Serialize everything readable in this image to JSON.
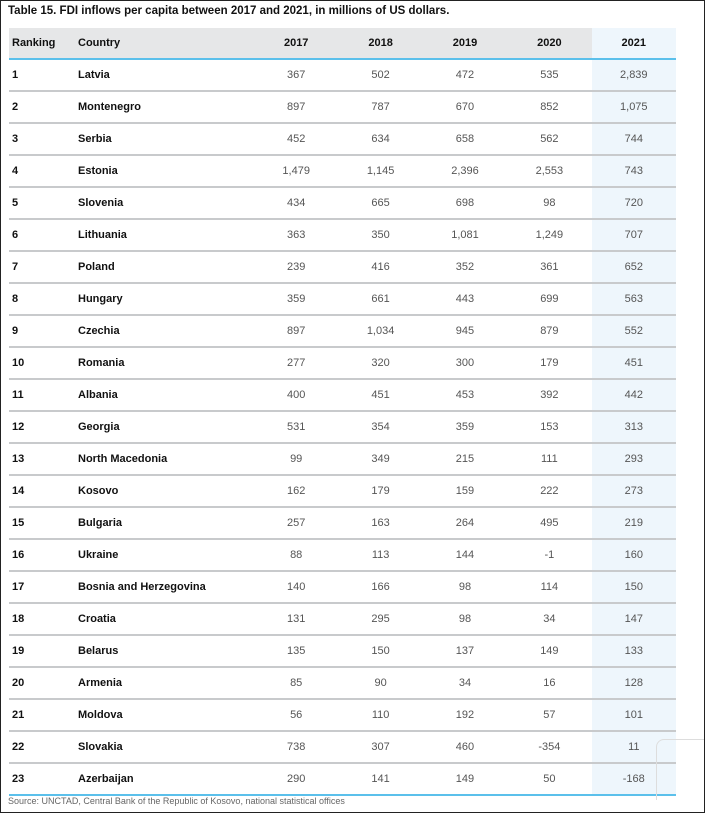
{
  "title": "Table 15. FDI inflows per capita between 2017 and 2021, in millions of US dollars.",
  "headers": [
    "Ranking",
    "Country",
    "2017",
    "2018",
    "2019",
    "2020",
    "2021"
  ],
  "rows": [
    [
      "1",
      "Latvia",
      "367",
      "502",
      "472",
      "535",
      "2,839"
    ],
    [
      "2",
      "Montenegro",
      "897",
      "787",
      "670",
      "852",
      "1,075"
    ],
    [
      "3",
      "Serbia",
      "452",
      "634",
      "658",
      "562",
      "744"
    ],
    [
      "4",
      "Estonia",
      "1,479",
      "1,145",
      "2,396",
      "2,553",
      "743"
    ],
    [
      "5",
      "Slovenia",
      "434",
      "665",
      "698",
      "98",
      "720"
    ],
    [
      "6",
      "Lithuania",
      "363",
      "350",
      "1,081",
      "1,249",
      "707"
    ],
    [
      "7",
      "Poland",
      "239",
      "416",
      "352",
      "361",
      "652"
    ],
    [
      "8",
      "Hungary",
      "359",
      "661",
      "443",
      "699",
      "563"
    ],
    [
      "9",
      "Czechia",
      "897",
      "1,034",
      "945",
      "879",
      "552"
    ],
    [
      "10",
      "Romania",
      "277",
      "320",
      "300",
      "179",
      "451"
    ],
    [
      "11",
      "Albania",
      "400",
      "451",
      "453",
      "392",
      "442"
    ],
    [
      "12",
      "Georgia",
      "531",
      "354",
      "359",
      "153",
      "313"
    ],
    [
      "13",
      "North Macedonia",
      "99",
      "349",
      "215",
      "111",
      "293"
    ],
    [
      "14",
      "Kosovo",
      "162",
      "179",
      "159",
      "222",
      "273"
    ],
    [
      "15",
      "Bulgaria",
      "257",
      "163",
      "264",
      "495",
      "219"
    ],
    [
      "16",
      "Ukraine",
      "88",
      "113",
      "144",
      "-1",
      "160"
    ],
    [
      "17",
      "Bosnia and Herzegovina",
      "140",
      "166",
      "98",
      "114",
      "150"
    ],
    [
      "18",
      "Croatia",
      "131",
      "295",
      "98",
      "34",
      "147"
    ],
    [
      "19",
      "Belarus",
      "135",
      "150",
      "137",
      "149",
      "133"
    ],
    [
      "20",
      "Armenia",
      "85",
      "90",
      "34",
      "16",
      "128"
    ],
    [
      "21",
      "Moldova",
      "56",
      "110",
      "192",
      "57",
      "101"
    ],
    [
      "22",
      "Slovakia",
      "738",
      "307",
      "460",
      "-354",
      "11"
    ],
    [
      "23",
      "Azerbaijan",
      "290",
      "141",
      "149",
      "50",
      "-168"
    ]
  ],
  "source": "Source: UNCTAD, Central Bank of the Republic of Kosovo, national statistical offices"
}
